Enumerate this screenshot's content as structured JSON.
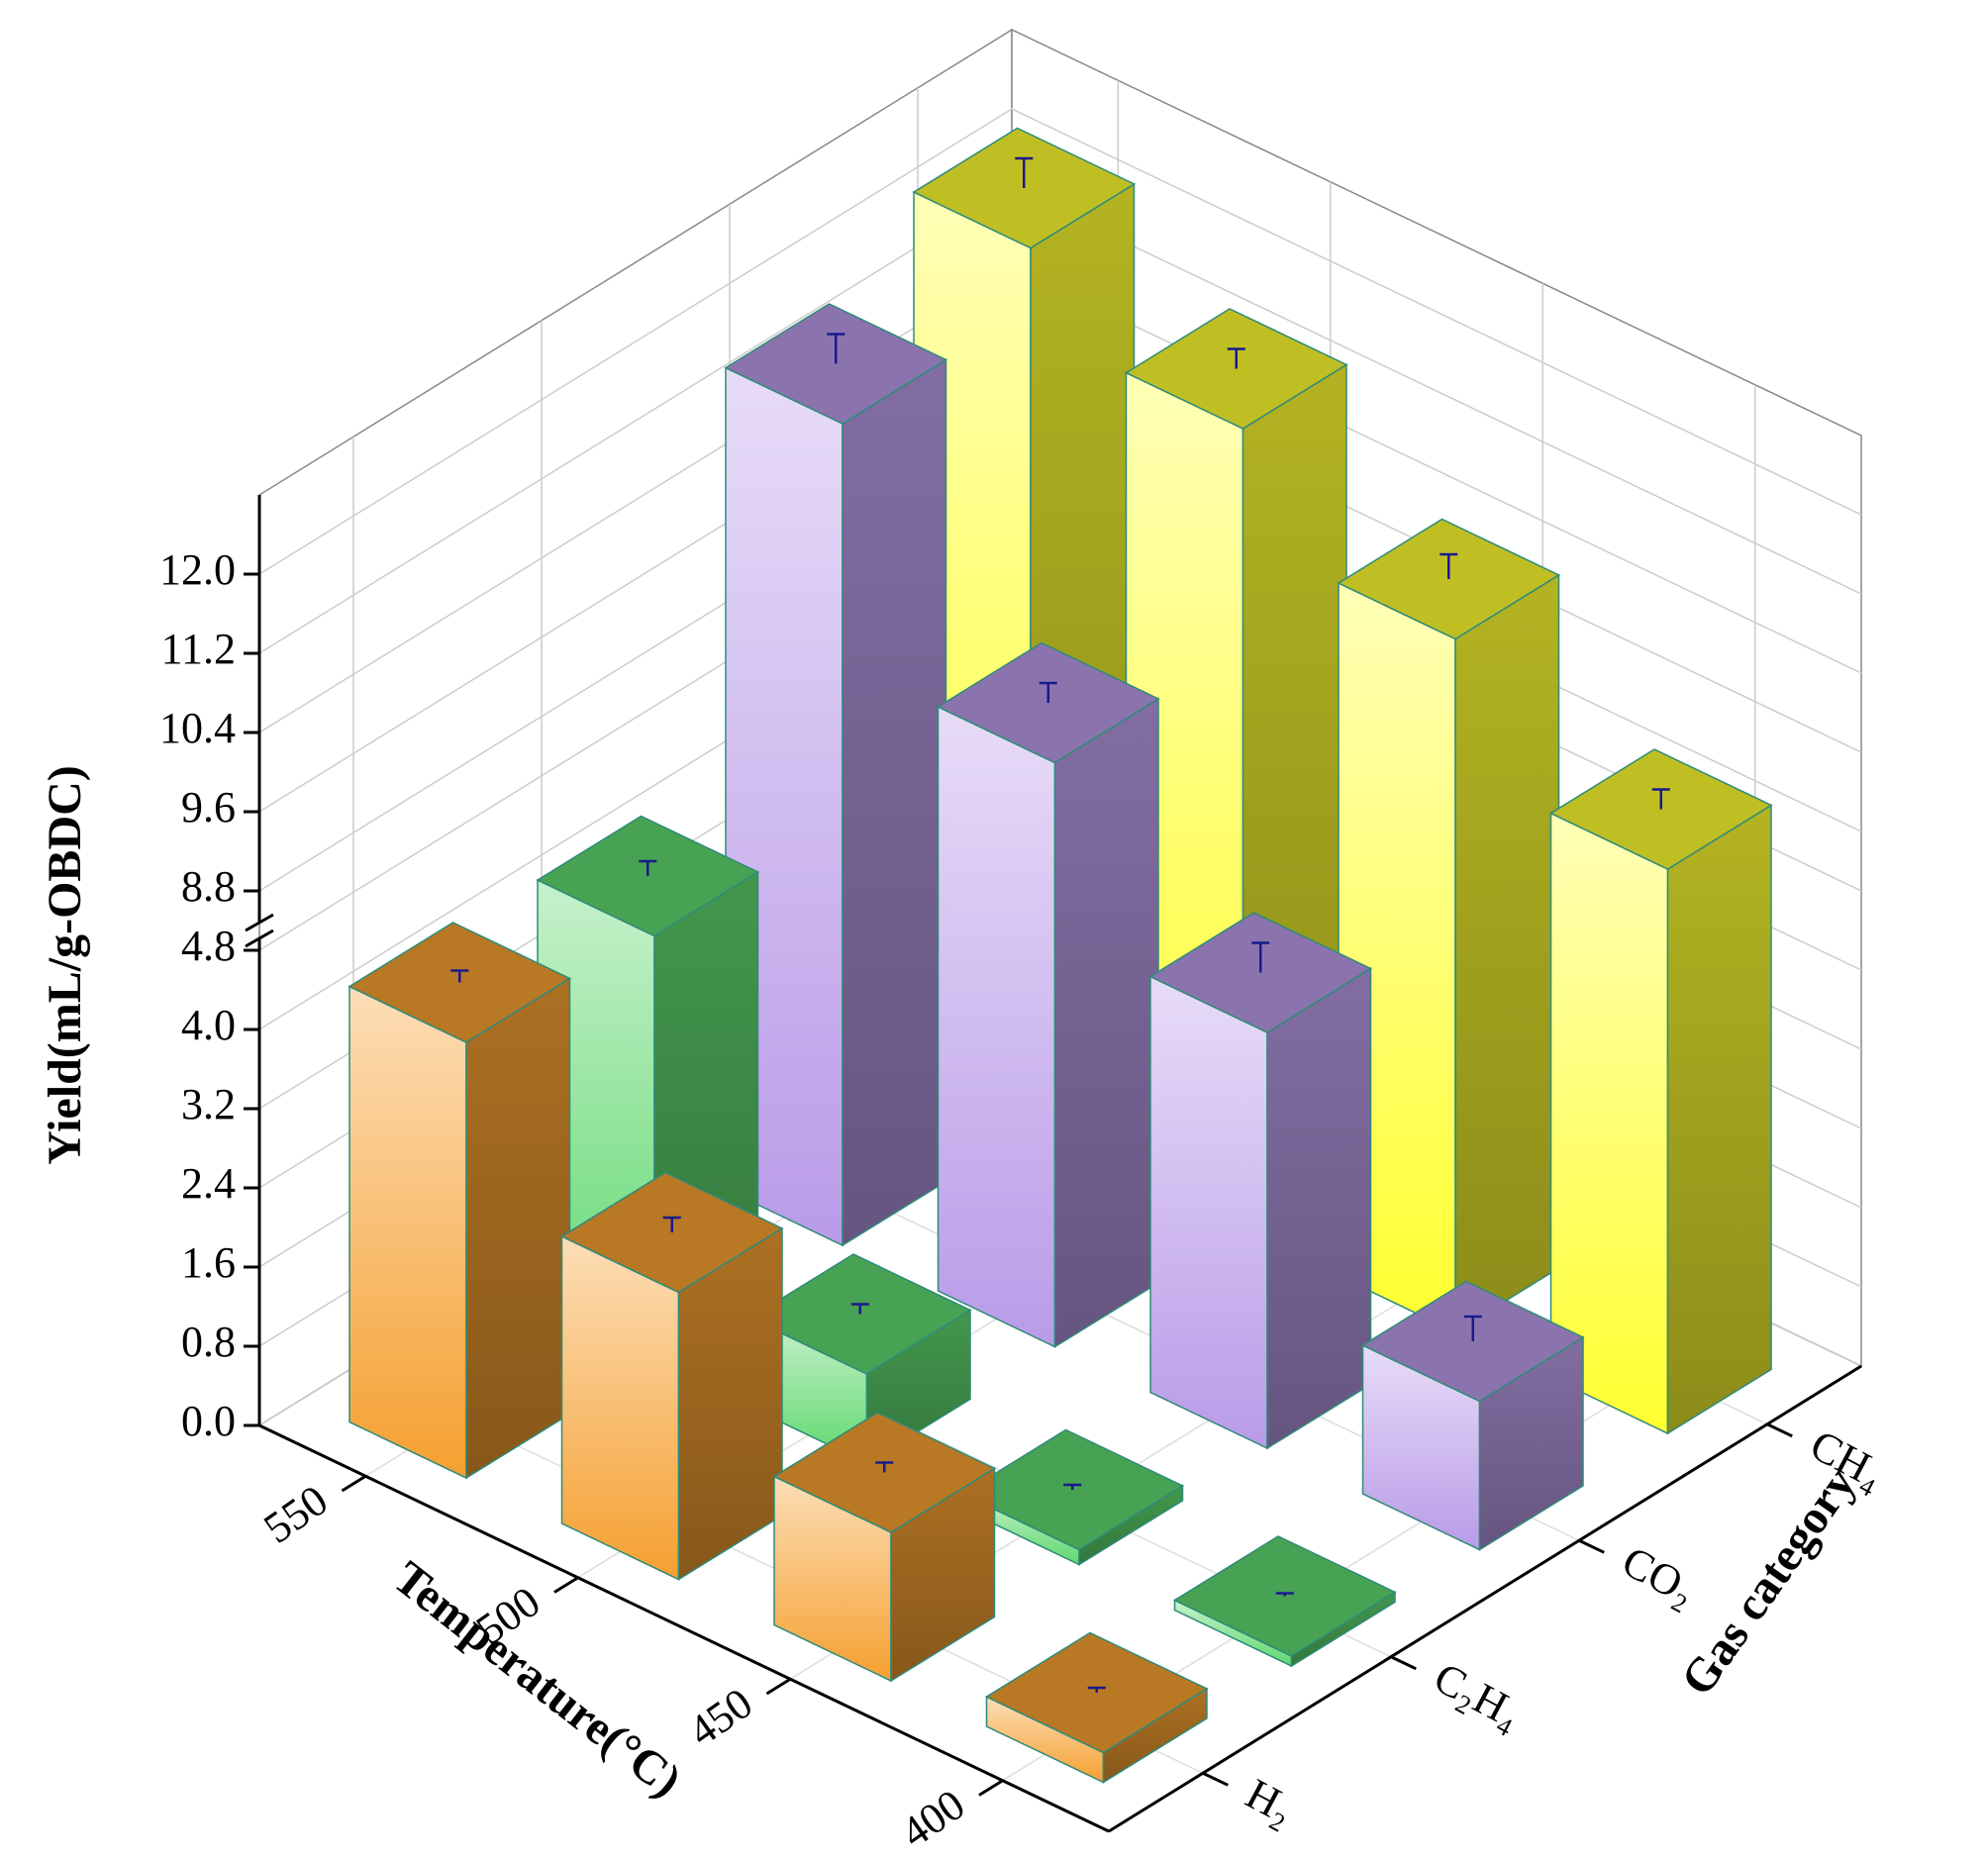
{
  "chart_data": {
    "type": "bar3d",
    "y_label": "Yield(mL/g-OBDC)",
    "x_label": "Temperature(°C)",
    "z_label": "Gas category",
    "categories": [
      "550",
      "500",
      "450",
      "400"
    ],
    "series": [
      {
        "name": "H₂",
        "color": "#f5a030",
        "values": [
          4.4,
          2.9,
          1.5,
          0.3
        ],
        "errors": [
          0.12,
          0.15,
          0.1,
          0.05
        ]
      },
      {
        "name": "C₂H₄",
        "color": "#5fd86e",
        "values": [
          4.3,
          0.9,
          0.15,
          0.1
        ],
        "errors": [
          0.15,
          0.1,
          0.05,
          0.03
        ]
      },
      {
        "name": "CO₂",
        "color": "#b99be8",
        "values": [
          11.7,
          9.3,
          4.2,
          1.5
        ],
        "errors": [
          0.3,
          0.2,
          0.3,
          0.25
        ]
      },
      {
        "name": "CH₄",
        "color": "#ffff30",
        "values": [
          12.3,
          11.5,
          10.4,
          9.1
        ],
        "errors": [
          0.3,
          0.2,
          0.25,
          0.2
        ]
      }
    ],
    "ylim": [
      0,
      12.8
    ],
    "ybreak": [
      5.0,
      8.4
    ],
    "yticks": [
      {
        "value": 0,
        "label": "0.0"
      },
      0.8,
      1.6,
      2.4,
      3.2,
      {
        "value": 4,
        "label": "4.0"
      },
      4.8,
      8.8,
      9.6,
      10.4,
      11.2,
      {
        "value": 12,
        "label": "12.0"
      }
    ],
    "grid": true
  }
}
